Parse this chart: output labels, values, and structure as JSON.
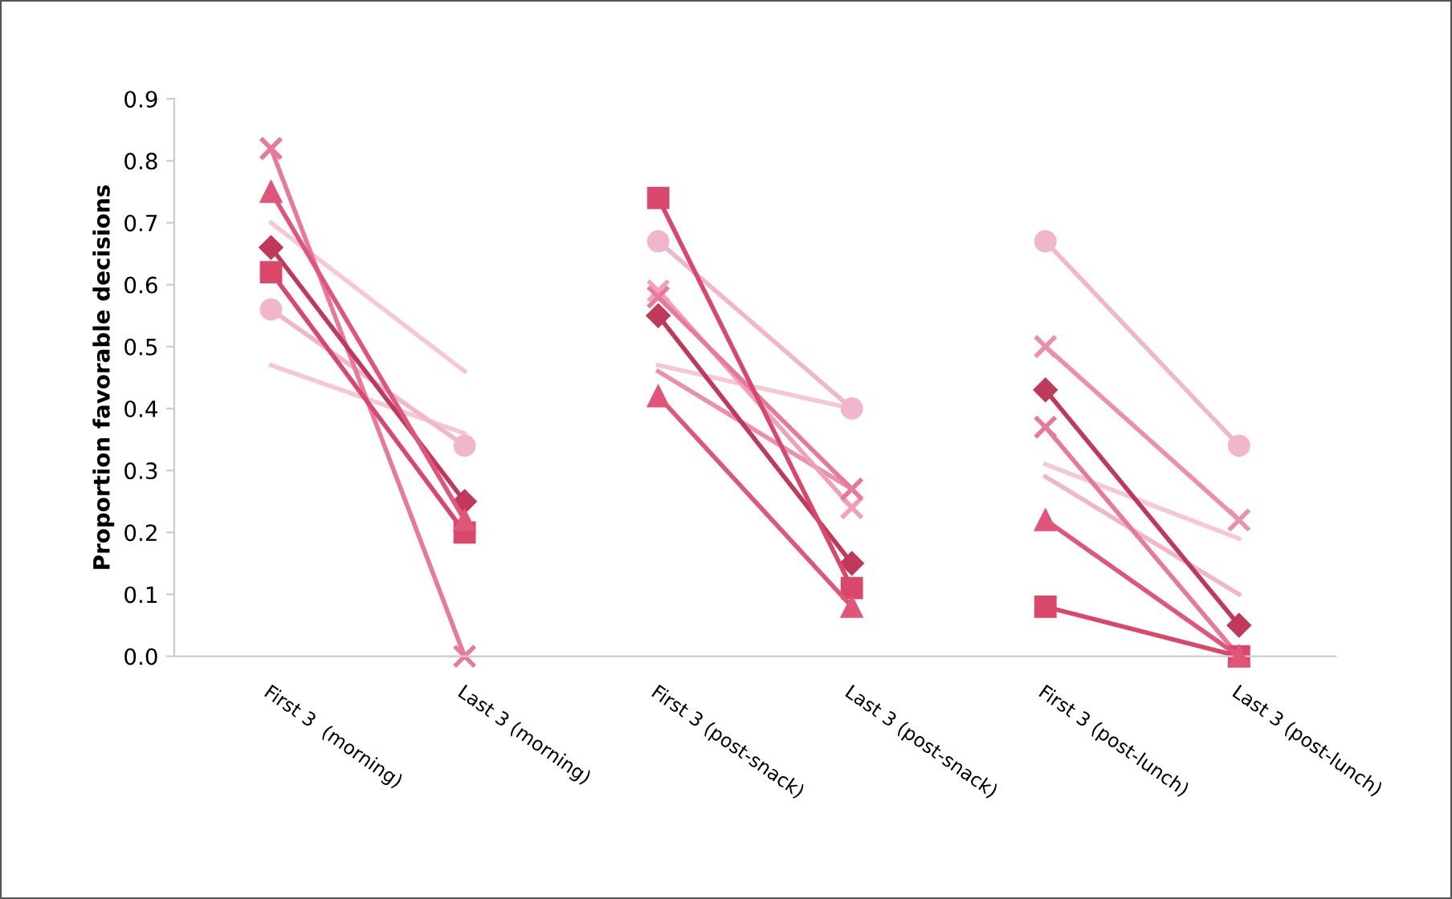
{
  "chart_data": {
    "type": "line",
    "ylabel": "Proportion favorable decisions",
    "categories": [
      "First 3  (morning)",
      "Last 3 (morning)",
      "First 3 (post-snack)",
      "Last 3 (post-snack)",
      "First 3 (post-lunch)",
      "Last 3 (post-lunch)"
    ],
    "ylim": [
      0,
      0.9
    ],
    "yticks": [
      {
        "value": 0,
        "label": "0.0"
      },
      0.1,
      0.2,
      0.3,
      0.4,
      0.5,
      0.6,
      0.7,
      0.8,
      0.9
    ],
    "grid": false,
    "legend": false,
    "series": [
      {
        "color": "#f6c8d6",
        "marker": "none",
        "values": [
          0.7,
          0.46,
          null,
          null,
          null,
          null
        ]
      },
      {
        "color": "#f6c8d6",
        "marker": "none",
        "values": [
          0.47,
          0.36,
          null,
          null,
          null,
          null
        ]
      },
      {
        "color": "#f2b6cc",
        "marker": "circle",
        "values": [
          0.56,
          0.34,
          null,
          null,
          null,
          null
        ]
      },
      {
        "color": "#e8799b",
        "marker": "cross",
        "values": [
          0.82,
          0.0,
          null,
          null,
          null,
          null
        ]
      },
      {
        "color": "#e0557a",
        "marker": "triangle",
        "values": [
          0.75,
          0.22,
          null,
          null,
          null,
          null
        ]
      },
      {
        "color": "#d9476b",
        "marker": "square",
        "values": [
          0.62,
          0.2,
          null,
          null,
          null,
          null
        ]
      },
      {
        "color": "#c0395a",
        "marker": "diamond",
        "values": [
          0.66,
          0.25,
          null,
          null,
          null,
          null
        ]
      },
      {
        "color": "#f6c8d6",
        "marker": "none",
        "values": [
          null,
          null,
          0.47,
          0.4,
          null,
          null
        ]
      },
      {
        "color": "#ec8fab",
        "marker": "none",
        "values": [
          null,
          null,
          0.46,
          0.27,
          null,
          null
        ]
      },
      {
        "color": "#f2b6cc",
        "marker": "circle",
        "values": [
          null,
          null,
          0.67,
          0.4,
          null,
          null
        ]
      },
      {
        "color": "#f0a0b8",
        "marker": "cross",
        "values": [
          null,
          null,
          0.59,
          0.24,
          null,
          null
        ]
      },
      {
        "color": "#e8799b",
        "marker": "cross",
        "values": [
          null,
          null,
          0.58,
          0.27,
          null,
          null
        ]
      },
      {
        "color": "#e0557a",
        "marker": "triangle",
        "values": [
          null,
          null,
          0.42,
          0.08,
          null,
          null
        ]
      },
      {
        "color": "#d9476b",
        "marker": "square",
        "values": [
          null,
          null,
          0.74,
          0.11,
          null,
          null
        ]
      },
      {
        "color": "#c0395a",
        "marker": "diamond",
        "values": [
          null,
          null,
          0.55,
          0.15,
          null,
          null
        ]
      },
      {
        "color": "#f6c8d6",
        "marker": "none",
        "values": [
          null,
          null,
          null,
          null,
          0.31,
          0.19
        ]
      },
      {
        "color": "#f2b6cc",
        "marker": "none",
        "values": [
          null,
          null,
          null,
          null,
          0.29,
          0.1
        ]
      },
      {
        "color": "#f2b6cc",
        "marker": "circle",
        "values": [
          null,
          null,
          null,
          null,
          0.67,
          0.34
        ]
      },
      {
        "color": "#ec8fab",
        "marker": "cross",
        "values": [
          null,
          null,
          null,
          null,
          0.5,
          0.22
        ]
      },
      {
        "color": "#e8799b",
        "marker": "cross",
        "values": [
          null,
          null,
          null,
          null,
          0.37,
          0.0
        ]
      },
      {
        "color": "#e0557a",
        "marker": "triangle",
        "values": [
          null,
          null,
          null,
          null,
          0.22,
          0.0
        ]
      },
      {
        "color": "#d9476b",
        "marker": "square",
        "values": [
          null,
          null,
          null,
          null,
          0.08,
          0.0
        ]
      },
      {
        "color": "#c0395a",
        "marker": "diamond",
        "values": [
          null,
          null,
          null,
          null,
          0.43,
          0.05
        ]
      }
    ]
  }
}
